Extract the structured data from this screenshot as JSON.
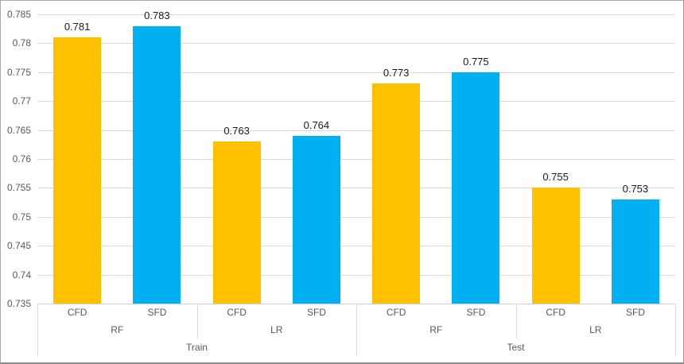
{
  "chart_data": {
    "type": "bar",
    "title": "",
    "xlabel": "",
    "ylabel": "",
    "ylim": [
      0.735,
      0.785
    ],
    "ytick_step": 0.005,
    "ytick_labels": [
      "0.785",
      "0.78",
      "0.775",
      "0.77",
      "0.765",
      "0.76",
      "0.755",
      "0.75",
      "0.745",
      "0.74",
      "0.735"
    ],
    "grid": true,
    "legend_position": "none",
    "colors": {
      "CFD": "#FFC000",
      "SFD": "#00B0F0"
    },
    "gridline_color": "#d9d9d9",
    "axis_text_color": "#595959",
    "data_label_color": "#1a1a1a",
    "categories_level1": [
      "CFD",
      "SFD",
      "CFD",
      "SFD",
      "CFD",
      "SFD",
      "CFD",
      "SFD"
    ],
    "categories_level2": [
      "RF",
      "LR",
      "RF",
      "LR"
    ],
    "categories_level3": [
      "Train",
      "Test"
    ],
    "series": [
      {
        "name": "CFD",
        "color": "#FFC000",
        "values": [
          0.781,
          0.763,
          0.773,
          0.755
        ]
      },
      {
        "name": "SFD",
        "color": "#00B0F0",
        "values": [
          0.783,
          0.764,
          0.775,
          0.753
        ]
      }
    ],
    "bars": [
      {
        "group": "Train",
        "subgroup": "RF",
        "name": "CFD",
        "value": 0.781,
        "label": "0.781",
        "color": "#FFC000"
      },
      {
        "group": "Train",
        "subgroup": "RF",
        "name": "SFD",
        "value": 0.783,
        "label": "0.783",
        "color": "#00B0F0"
      },
      {
        "group": "Train",
        "subgroup": "LR",
        "name": "CFD",
        "value": 0.763,
        "label": "0.763",
        "color": "#FFC000"
      },
      {
        "group": "Train",
        "subgroup": "LR",
        "name": "SFD",
        "value": 0.764,
        "label": "0.764",
        "color": "#00B0F0"
      },
      {
        "group": "Test",
        "subgroup": "RF",
        "name": "CFD",
        "value": 0.773,
        "label": "0.773",
        "color": "#FFC000"
      },
      {
        "group": "Test",
        "subgroup": "RF",
        "name": "SFD",
        "value": 0.775,
        "label": "0.775",
        "color": "#00B0F0"
      },
      {
        "group": "Test",
        "subgroup": "LR",
        "name": "CFD",
        "value": 0.755,
        "label": "0.755",
        "color": "#FFC000"
      },
      {
        "group": "Test",
        "subgroup": "LR",
        "name": "SFD",
        "value": 0.753,
        "label": "0.753",
        "color": "#00B0F0"
      }
    ]
  }
}
